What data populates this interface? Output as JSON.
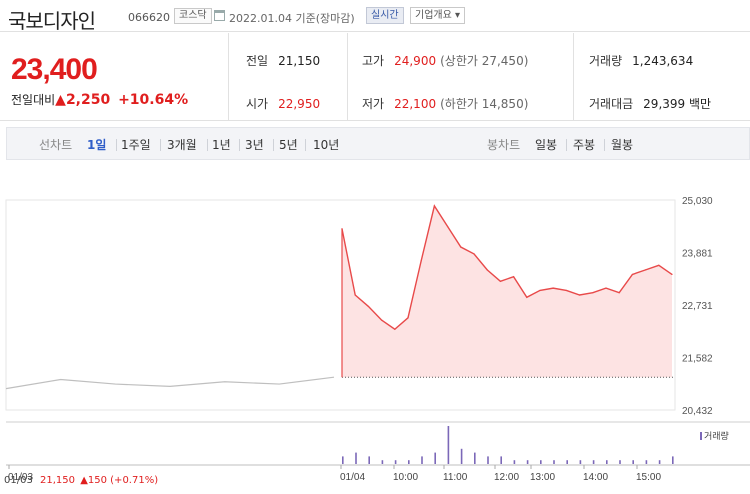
{
  "header": {
    "stock_name": "국보디자인",
    "code": "066620",
    "market": "코스닥",
    "date_text": "2022.01.04 기준(장마감)",
    "realtime_button": "실시간",
    "overview_button": "기업개요 ▾"
  },
  "price": {
    "current": "23,400",
    "change_label": "전일대비",
    "change_amount": "▲2,250",
    "change_percent": "+10.64%"
  },
  "stats": {
    "prev_close_label": "전일",
    "prev_close": "21,150",
    "open_label": "시가",
    "open": "22,950",
    "high_label": "고가",
    "high": "24,900",
    "upper_limit": "(상한가 27,450)",
    "low_label": "저가",
    "low": "22,100",
    "lower_limit": "(하한가 14,850)",
    "volume_label": "거래량",
    "volume": "1,243,634",
    "amount_label": "거래대금",
    "amount": "29,399 백만"
  },
  "period_bar": {
    "line_label": "선차트",
    "periods": [
      "1일",
      "1주일",
      "3개월",
      "1년",
      "3년",
      "5년",
      "10년"
    ],
    "selected_period": "1일",
    "candle_label": "봉차트",
    "candle_periods": [
      "일봉",
      "주봉",
      "월봉"
    ]
  },
  "colors": {
    "up": "#e01e1e",
    "line": "#e84a4a",
    "area_fill": "#fde3e3",
    "prev_day_line": "#bfbfbf",
    "volume_bar": "#7b68b8",
    "selected": "#2f5dc8"
  },
  "chart_data": {
    "type": "line",
    "ylim": [
      20432,
      25030
    ],
    "y_ticks": [
      "25,030",
      "23,881",
      "22,731",
      "21,582",
      "20,432"
    ],
    "x_ticks": [
      "01/03",
      "01/04",
      "10:00",
      "11:00",
      "12:00",
      "13:00",
      "14:00",
      "15:00"
    ],
    "prev_close": 21150,
    "series": [
      {
        "x": [
          "01/03 09:00",
          "01/03 10:00",
          "01/03 11:00",
          "01/03 12:00",
          "01/03 13:00",
          "01/03 14:00",
          "01/03 15:30"
        ],
        "values": [
          20900,
          21100,
          21000,
          20950,
          21050,
          21000,
          21150
        ]
      },
      {
        "x": [
          "09:00",
          "09:05",
          "09:15",
          "09:30",
          "09:45",
          "10:00",
          "10:05",
          "10:10",
          "10:20",
          "10:35",
          "10:50",
          "11:05",
          "11:20",
          "11:40",
          "12:00",
          "12:10",
          "12:30",
          "13:00",
          "13:20",
          "13:40",
          "14:00",
          "14:20",
          "14:40",
          "15:00",
          "15:20",
          "15:30"
        ],
        "values": [
          24400,
          22950,
          22700,
          22400,
          22200,
          22450,
          23700,
          24900,
          24450,
          24000,
          23850,
          23500,
          23250,
          23350,
          22900,
          23050,
          23100,
          23050,
          22950,
          23000,
          23100,
          23000,
          23400,
          23500,
          23600,
          23400
        ]
      }
    ],
    "volume_label": "거래량",
    "volume": [
      2,
      3,
      2,
      1,
      1,
      1,
      2,
      3,
      10,
      4,
      3,
      2,
      2,
      1,
      1,
      1,
      1,
      1,
      1,
      1,
      1,
      1,
      1,
      1,
      1,
      2
    ]
  },
  "bottom": {
    "date": "01/03",
    "price": "21,150",
    "change": "▲150 (+0.71%)"
  }
}
